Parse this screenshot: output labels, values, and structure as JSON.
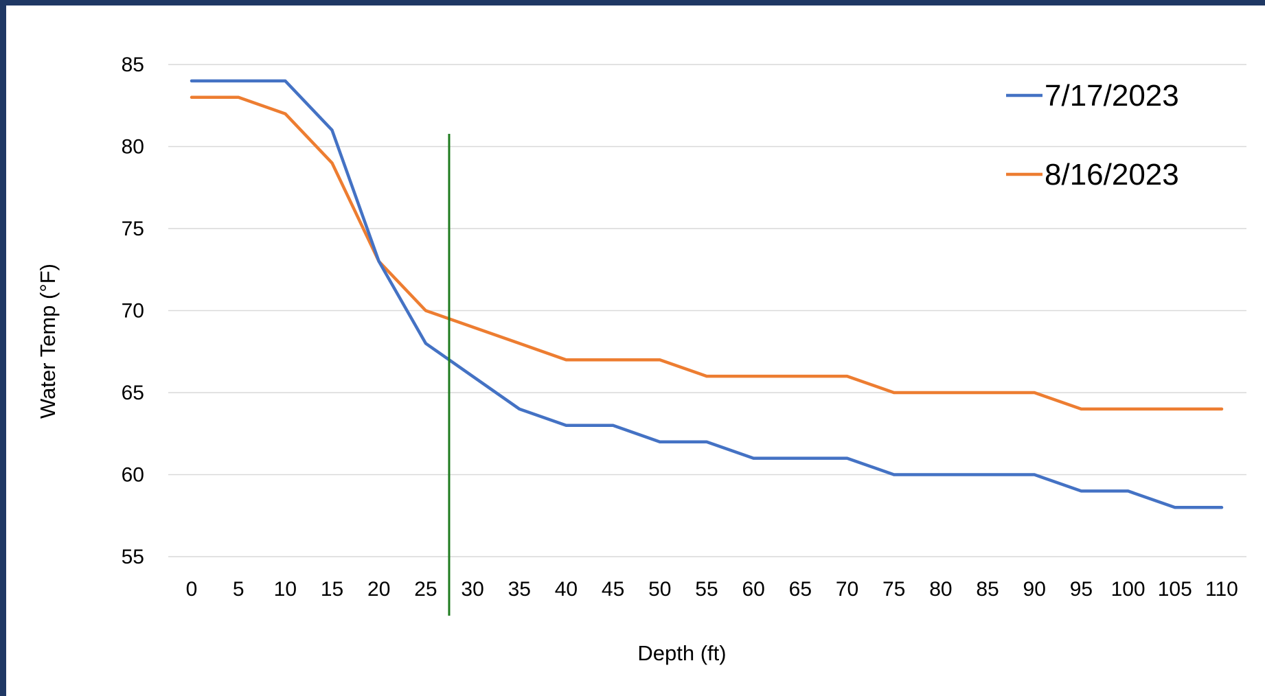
{
  "chart_data": {
    "type": "line",
    "xlabel": "Depth (ft)",
    "ylabel": "Water Temp (°F)",
    "x": [
      0,
      5,
      10,
      15,
      20,
      25,
      30,
      35,
      40,
      45,
      50,
      55,
      60,
      65,
      70,
      75,
      80,
      85,
      90,
      95,
      100,
      105,
      110
    ],
    "categories": [
      "0",
      "5",
      "10",
      "15",
      "20",
      "25",
      "30",
      "35",
      "40",
      "45",
      "50",
      "55",
      "60",
      "65",
      "70",
      "75",
      "80",
      "85",
      "90",
      "95",
      "100",
      "105",
      "110"
    ],
    "ylim": [
      55,
      85
    ],
    "yticks": [
      55,
      60,
      65,
      70,
      75,
      80,
      85
    ],
    "grid": true,
    "legend_position": "top-right",
    "series": [
      {
        "name": "7/17/2023",
        "color": "#4472C4",
        "values": [
          84,
          84,
          84,
          81,
          73,
          68,
          66,
          64,
          63,
          63,
          62,
          62,
          61,
          61,
          61,
          60,
          60,
          60,
          60,
          59,
          59,
          58,
          58
        ]
      },
      {
        "name": "8/16/2023",
        "color": "#ED7D31",
        "values": [
          83,
          83,
          82,
          79,
          73,
          70,
          69,
          68,
          67,
          67,
          67,
          66,
          66,
          66,
          66,
          65,
          65,
          65,
          65,
          64,
          64,
          64,
          64
        ]
      }
    ],
    "reference_line": {
      "orientation": "vertical",
      "x": 27.5,
      "color": "#1E7B1E"
    },
    "colors": {
      "frame": "#1F3864",
      "background": "#FFFFFF",
      "gridline": "#D9D9D9"
    }
  }
}
